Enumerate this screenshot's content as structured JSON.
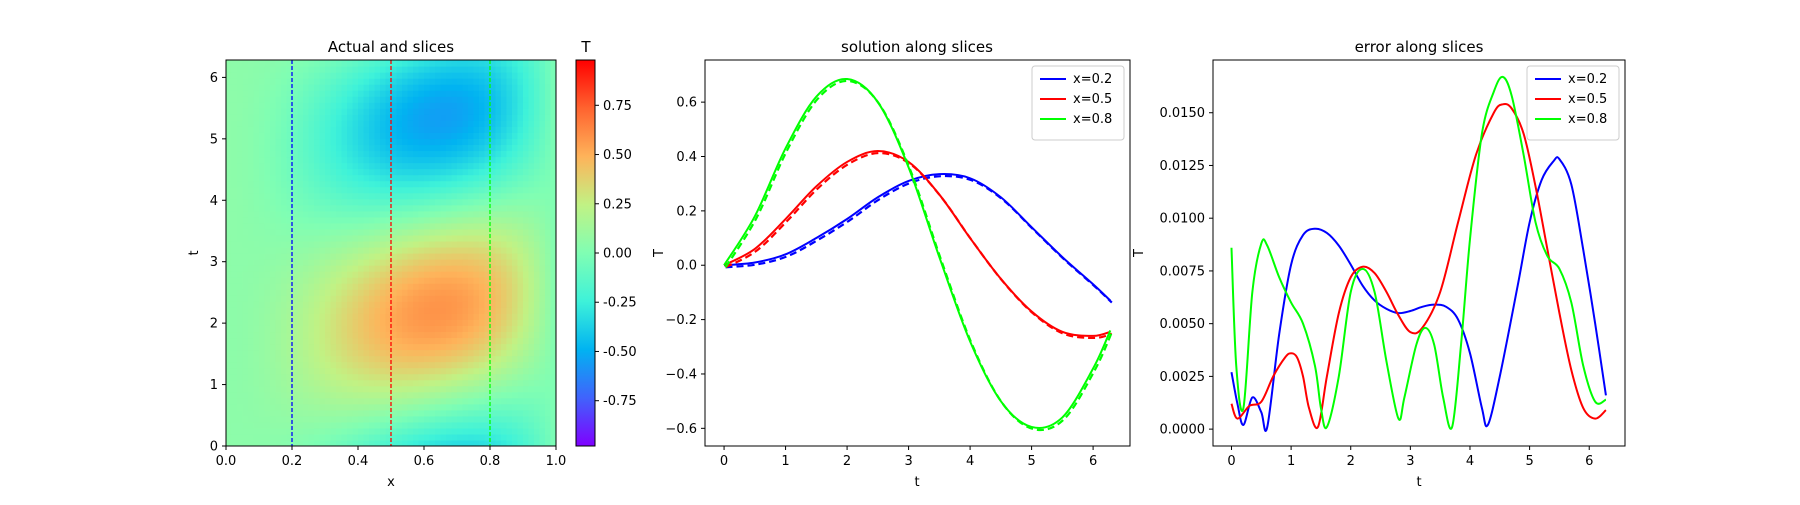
{
  "chart_data": [
    {
      "type": "heatmap",
      "title": "Actual and slices",
      "xlabel": "x",
      "ylabel": "t",
      "xlim": [
        0,
        1
      ],
      "ylim": [
        0,
        6.2832
      ],
      "xticks": [
        "0.0",
        "0.2",
        "0.4",
        "0.6",
        "0.8",
        "1.0"
      ],
      "yticks": [
        "0",
        "1",
        "2",
        "3",
        "4",
        "5",
        "6"
      ],
      "colormap": "rainbow",
      "colorbar": {
        "label": "T",
        "range": [
          -0.98,
          0.98
        ],
        "ticks": [
          "-0.75",
          "-0.50",
          "-0.25",
          "0.00",
          "0.25",
          "0.50",
          "0.75"
        ]
      },
      "slices": [
        {
          "x": 0.2,
          "color": "#0000ff"
        },
        {
          "x": 0.5,
          "color": "#ff0000"
        },
        {
          "x": 0.8,
          "color": "#00ff00"
        }
      ]
    },
    {
      "type": "line",
      "title": "solution along slices",
      "xlabel": "t",
      "ylabel": "T",
      "xlim": [
        -0.31,
        6.6
      ],
      "ylim": [
        -0.665,
        0.755
      ],
      "xticks": [
        "0",
        "1",
        "2",
        "3",
        "4",
        "5",
        "6"
      ],
      "yticks": [
        "−0.6",
        "−0.4",
        "−0.2",
        "0.0",
        "0.2",
        "0.4",
        "0.6"
      ],
      "legend_position": "top-right",
      "dashed_overlay": true,
      "series": [
        {
          "name": "x=0.2",
          "color": "#0000ff",
          "x": [
            0,
            0.5,
            1,
            1.5,
            2,
            2.5,
            3,
            3.5,
            4,
            4.5,
            5,
            5.5,
            6,
            6.28
          ],
          "y": [
            0,
            0.01,
            0.04,
            0.1,
            0.17,
            0.25,
            0.31,
            0.335,
            0.32,
            0.25,
            0.14,
            0.03,
            -0.07,
            -0.13
          ]
        },
        {
          "name": "x=0.5",
          "color": "#ff0000",
          "x": [
            0,
            0.5,
            1,
            1.5,
            2,
            2.5,
            3,
            3.5,
            4,
            4.5,
            5,
            5.5,
            6,
            6.28
          ],
          "y": [
            0,
            0.06,
            0.17,
            0.29,
            0.38,
            0.42,
            0.38,
            0.26,
            0.1,
            -0.05,
            -0.17,
            -0.245,
            -0.26,
            -0.245
          ]
        },
        {
          "name": "x=0.8",
          "color": "#00ff00",
          "x": [
            0,
            0.5,
            1,
            1.5,
            2,
            2.5,
            3,
            3.5,
            4,
            4.5,
            5,
            5.5,
            6,
            6.28
          ],
          "y": [
            0,
            0.18,
            0.43,
            0.62,
            0.685,
            0.6,
            0.36,
            0.03,
            -0.28,
            -0.5,
            -0.595,
            -0.56,
            -0.38,
            -0.24
          ]
        }
      ]
    },
    {
      "type": "line",
      "title": "error along slices",
      "xlabel": "t",
      "ylabel": "T",
      "xlim": [
        -0.31,
        6.6
      ],
      "ylim": [
        -0.0008,
        0.0175
      ],
      "xticks": [
        "0",
        "1",
        "2",
        "3",
        "4",
        "5",
        "6"
      ],
      "yticks": [
        "0.0000",
        "0.0025",
        "0.0050",
        "0.0075",
        "0.0100",
        "0.0125",
        "0.0150"
      ],
      "legend_position": "top-right",
      "series": [
        {
          "name": "x=0.2",
          "color": "#0000ff",
          "x": [
            0,
            0.1,
            0.2,
            0.35,
            0.5,
            0.6,
            0.8,
            1.0,
            1.2,
            1.4,
            1.6,
            1.8,
            2.0,
            2.2,
            2.4,
            2.6,
            2.8,
            3.0,
            3.2,
            3.4,
            3.6,
            3.8,
            4.0,
            4.2,
            4.3,
            4.5,
            4.8,
            5.0,
            5.2,
            5.4,
            5.5,
            5.7,
            5.9,
            6.1,
            6.28
          ],
          "y": [
            0.0027,
            0.0012,
            0.0002,
            0.0015,
            0.0008,
            0.0001,
            0.0045,
            0.0078,
            0.0092,
            0.0095,
            0.0093,
            0.0087,
            0.0078,
            0.0068,
            0.0061,
            0.0057,
            0.0055,
            0.0056,
            0.0058,
            0.0059,
            0.0058,
            0.0052,
            0.0036,
            0.001,
            0.0002,
            0.0025,
            0.0068,
            0.0098,
            0.0118,
            0.0127,
            0.0128,
            0.0116,
            0.0085,
            0.005,
            0.0016
          ]
        },
        {
          "name": "x=0.5",
          "color": "#ff0000",
          "x": [
            0,
            0.1,
            0.3,
            0.5,
            0.7,
            0.9,
            1.0,
            1.1,
            1.2,
            1.3,
            1.45,
            1.6,
            1.8,
            2.0,
            2.2,
            2.4,
            2.6,
            2.8,
            3.0,
            3.2,
            3.5,
            3.8,
            4.1,
            4.4,
            4.55,
            4.7,
            4.9,
            5.1,
            5.3,
            5.5,
            5.7,
            5.9,
            6.1,
            6.28
          ],
          "y": [
            0.0012,
            0.0005,
            0.0011,
            0.0013,
            0.0025,
            0.0034,
            0.0036,
            0.0034,
            0.0025,
            0.001,
            0.0001,
            0.0025,
            0.0055,
            0.0072,
            0.0077,
            0.0074,
            0.0065,
            0.0054,
            0.0046,
            0.0048,
            0.0065,
            0.0098,
            0.013,
            0.015,
            0.0154,
            0.0152,
            0.014,
            0.0115,
            0.0085,
            0.0055,
            0.0028,
            0.001,
            0.0005,
            0.0009
          ]
        },
        {
          "name": "x=0.8",
          "color": "#00ff00",
          "x": [
            0,
            0.08,
            0.2,
            0.35,
            0.5,
            0.6,
            0.8,
            1.0,
            1.2,
            1.4,
            1.5,
            1.6,
            1.8,
            2.0,
            2.2,
            2.4,
            2.6,
            2.8,
            2.9,
            3.1,
            3.25,
            3.4,
            3.55,
            3.7,
            3.85,
            4.0,
            4.2,
            4.4,
            4.55,
            4.7,
            4.9,
            5.1,
            5.3,
            5.5,
            5.7,
            5.9,
            6.1,
            6.28
          ],
          "y": [
            0.0086,
            0.003,
            0.001,
            0.0065,
            0.0088,
            0.0087,
            0.0072,
            0.006,
            0.005,
            0.003,
            0.001,
            0.0001,
            0.0025,
            0.0065,
            0.0076,
            0.0065,
            0.0032,
            0.0005,
            0.0015,
            0.004,
            0.0048,
            0.004,
            0.0015,
            0.0001,
            0.004,
            0.009,
            0.014,
            0.016,
            0.0167,
            0.0158,
            0.013,
            0.0098,
            0.0082,
            0.0076,
            0.006,
            0.003,
            0.0013,
            0.0014
          ]
        }
      ]
    }
  ]
}
